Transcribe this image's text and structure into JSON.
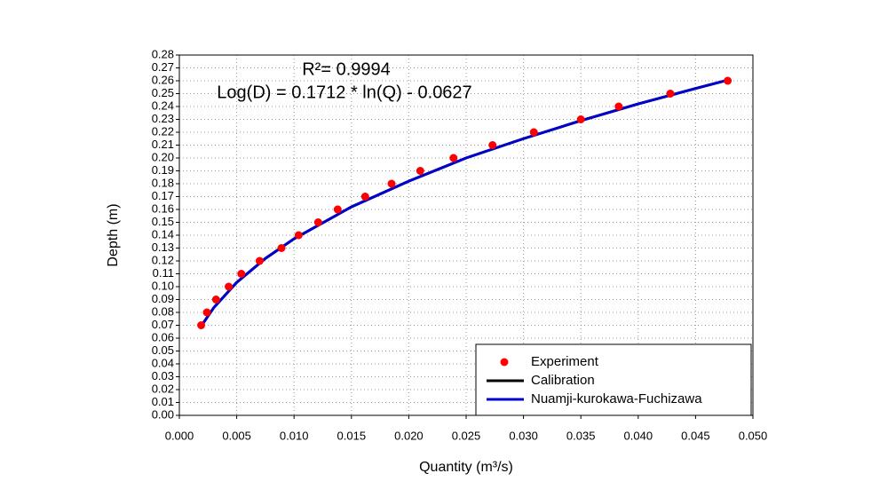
{
  "chart_data": {
    "type": "scatter",
    "x_label": "Quantity (m³/s)",
    "y_label": "Depth (m)",
    "annotations": [
      "R²= 0.9994",
      "Log(D) = 0.1712 * ln(Q) - 0.0627"
    ],
    "xlim": [
      0,
      0.05
    ],
    "ylim": [
      0,
      0.28
    ],
    "grid": true,
    "legend": "lower right",
    "xticks": [
      {
        "value": 0,
        "label": "0.000"
      },
      {
        "value": 0.005,
        "label": "0.005"
      },
      {
        "value": 0.01,
        "label": "0.010"
      },
      {
        "value": 0.015,
        "label": "0.015"
      },
      {
        "value": 0.02,
        "label": "0.020"
      },
      {
        "value": 0.025,
        "label": "0.025"
      },
      {
        "value": 0.03,
        "label": "0.030"
      },
      {
        "value": 0.035,
        "label": "0.035"
      },
      {
        "value": 0.04,
        "label": "0.040"
      },
      {
        "value": 0.045,
        "label": "0.045"
      },
      {
        "value": 0.05,
        "label": "0.050"
      }
    ],
    "yticks": [
      {
        "value": 0,
        "label": "0.00"
      },
      {
        "value": 0.01,
        "label": "0.01"
      },
      {
        "value": 0.02,
        "label": "0.02"
      },
      {
        "value": 0.03,
        "label": "0.03"
      },
      {
        "value": 0.04,
        "label": "0.04"
      },
      {
        "value": 0.05,
        "label": "0.05"
      },
      {
        "value": 0.06,
        "label": "0.06"
      },
      {
        "value": 0.07,
        "label": "0.07"
      },
      {
        "value": 0.08,
        "label": "0.08"
      },
      {
        "value": 0.09,
        "label": "0.09"
      },
      {
        "value": 0.1,
        "label": "0.10"
      },
      {
        "value": 0.11,
        "label": "0.11"
      },
      {
        "value": 0.12,
        "label": "0.12"
      },
      {
        "value": 0.13,
        "label": "0.13"
      },
      {
        "value": 0.14,
        "label": "0.14"
      },
      {
        "value": 0.15,
        "label": "0.15"
      },
      {
        "value": 0.16,
        "label": "0.16"
      },
      {
        "value": 0.17,
        "label": "0.17"
      },
      {
        "value": 0.18,
        "label": "0.18"
      },
      {
        "value": 0.19,
        "label": "0.19"
      },
      {
        "value": 0.2,
        "label": "0.20"
      },
      {
        "value": 0.21,
        "label": "0.21"
      },
      {
        "value": 0.22,
        "label": "0.22"
      },
      {
        "value": 0.23,
        "label": "0.23"
      },
      {
        "value": 0.24,
        "label": "0.24"
      },
      {
        "value": 0.25,
        "label": "0.25"
      },
      {
        "value": 0.26,
        "label": "0.26"
      },
      {
        "value": 0.27,
        "label": "0.27"
      },
      {
        "value": 0.28,
        "label": "0.28"
      }
    ],
    "series": [
      {
        "name": "Experiment",
        "type": "scatter",
        "color": "#ff0000",
        "x": [
          0.0019,
          0.0024,
          0.0032,
          0.0043,
          0.0054,
          0.007,
          0.0089,
          0.0104,
          0.0121,
          0.0138,
          0.0162,
          0.0185,
          0.021,
          0.0239,
          0.0273,
          0.0309,
          0.035,
          0.0383,
          0.0428,
          0.0478
        ],
        "values": [
          0.07,
          0.08,
          0.09,
          0.1,
          0.11,
          0.12,
          0.13,
          0.14,
          0.15,
          0.16,
          0.17,
          0.18,
          0.19,
          0.2,
          0.21,
          0.22,
          0.23,
          0.24,
          0.25,
          0.26
        ]
      },
      {
        "name": "Calibration",
        "type": "line",
        "color": "#000000",
        "x": [
          0.0018,
          0.003,
          0.005,
          0.0075,
          0.01,
          0.015,
          0.02,
          0.025,
          0.03,
          0.035,
          0.04,
          0.045,
          0.048
        ],
        "values": [
          0.068,
          0.0837,
          0.1033,
          0.1219,
          0.1372,
          0.162,
          0.182,
          0.2,
          0.215,
          0.229,
          0.242,
          0.254,
          0.261
        ]
      },
      {
        "name": "Nuamji-kurokawa-Fuchizawa",
        "type": "line",
        "color": "#0000cc",
        "x": [
          0.0018,
          0.003,
          0.005,
          0.0075,
          0.01,
          0.015,
          0.02,
          0.025,
          0.03,
          0.035,
          0.04,
          0.045,
          0.048
        ],
        "values": [
          0.068,
          0.0837,
          0.1033,
          0.1219,
          0.1372,
          0.162,
          0.182,
          0.2,
          0.215,
          0.229,
          0.242,
          0.254,
          0.261
        ]
      }
    ]
  }
}
